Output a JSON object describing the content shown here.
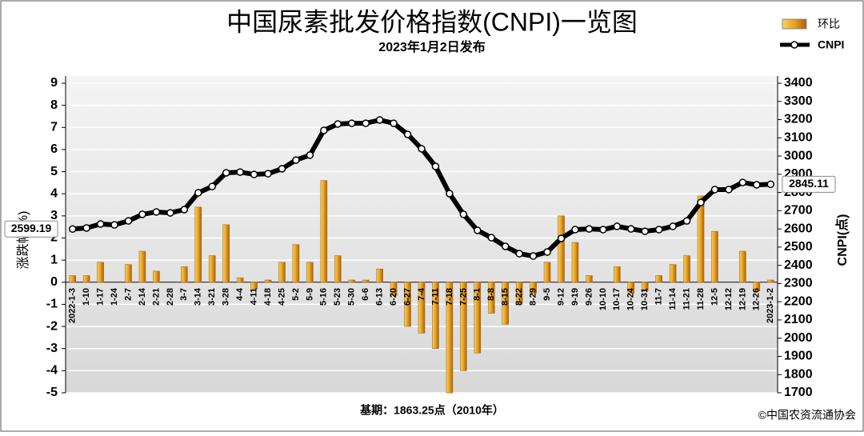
{
  "chart_data": {
    "type": "bar-line",
    "title": "中国尿素批发价格指数(CNPI)一览图",
    "subtitle": "2023年1月2日发布",
    "y_label": "涨跌幅(%)",
    "y2_label": "CNPI(点)",
    "footer": "基期：1863.25点（2010年）",
    "source": "©中国农资流通协会",
    "categories": [
      "2022-1-3",
      "1-10",
      "1-17",
      "1-24",
      "2-7",
      "2-14",
      "2-21",
      "2-28",
      "3-7",
      "3-14",
      "3-21",
      "3-28",
      "4-4",
      "4-11",
      "4-18",
      "4-25",
      "5-2",
      "5-9",
      "5-16",
      "5-23",
      "5-30",
      "6-6",
      "6-13",
      "6-20",
      "6-27",
      "7-4",
      "7-11",
      "7-18",
      "7-25",
      "8-1",
      "8-8",
      "8-15",
      "8-22",
      "8-29",
      "9-5",
      "9-12",
      "9-19",
      "9-26",
      "10-10",
      "10-17",
      "10-24",
      "10-31",
      "11-7",
      "11-14",
      "11-21",
      "11-28",
      "12-5",
      "12-12",
      "12-19",
      "12-26",
      "2023-1-2"
    ],
    "series": [
      {
        "name": "环比",
        "type": "bar",
        "color": "#e8a020",
        "values": [
          0.3,
          0.3,
          0.9,
          0,
          0.8,
          1.4,
          0.5,
          0,
          0.7,
          3.4,
          1.2,
          2.6,
          0.2,
          -0.3,
          0.1,
          0.9,
          1.7,
          0.9,
          4.6,
          1.2,
          0.1,
          0.1,
          0.6,
          -0.6,
          -2.0,
          -2.3,
          -3.0,
          -5.0,
          -4.0,
          -3.2,
          -1.4,
          -1.9,
          -1.0,
          -0.5,
          0.9,
          3.0,
          1.8,
          0.3,
          0,
          0.7,
          -0.5,
          -0.4,
          0.3,
          0.8,
          1.2,
          3.9,
          2.3,
          0,
          1.4,
          -0.4,
          0.1
        ]
      },
      {
        "name": "CNPI",
        "type": "line",
        "axis": "y2",
        "color": "#000000",
        "values": [
          2599.19,
          2605,
          2627,
          2622,
          2644,
          2680,
          2693,
          2688,
          2706,
          2798,
          2833,
          2908,
          2912,
          2899,
          2903,
          2930,
          2978,
          3005,
          3141,
          3176,
          3180,
          3180,
          3198,
          3180,
          3119,
          3040,
          2943,
          2794,
          2680,
          2592,
          2552,
          2504,
          2464,
          2451,
          2473,
          2548,
          2596,
          2600,
          2596,
          2614,
          2600,
          2587,
          2596,
          2614,
          2644,
          2745,
          2816,
          2816,
          2855,
          2842,
          2845.11
        ]
      }
    ],
    "ylim": [
      -5,
      9
    ],
    "yticks": [
      -5,
      -4,
      -3,
      -2,
      -1,
      0,
      1,
      2,
      3,
      4,
      5,
      6,
      7,
      8,
      9
    ],
    "y2lim": [
      1700,
      3400
    ],
    "y2ticks": [
      1700,
      1800,
      1900,
      2000,
      2100,
      2200,
      2300,
      2400,
      2500,
      2600,
      2700,
      2800,
      2900,
      3000,
      3100,
      3200,
      3300,
      3400
    ],
    "grid": true
  }
}
